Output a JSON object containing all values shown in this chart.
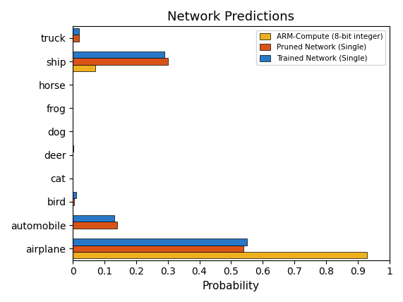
{
  "categories": [
    "airplane",
    "automobile",
    "bird",
    "cat",
    "deer",
    "dog",
    "frog",
    "horse",
    "ship",
    "truck"
  ],
  "trained_network": [
    0.55,
    0.13,
    0.01,
    0.0,
    0.002,
    0.0,
    0.0,
    0.0,
    0.29,
    0.02
  ],
  "pruned_network": [
    0.54,
    0.14,
    0.005,
    0.0,
    0.0,
    0.0,
    0.0,
    0.0,
    0.3,
    0.02
  ],
  "arm_compute": [
    0.93,
    0.0,
    0.0,
    0.0,
    0.0,
    0.0,
    0.0,
    0.0,
    0.07,
    0.0
  ],
  "colors": {
    "trained": "#2878c8",
    "pruned": "#d95319",
    "arm": "#edb120"
  },
  "title": "Network Predictions",
  "xlabel": "Probability",
  "xlim": [
    0,
    1
  ],
  "xticks": [
    0,
    0.1,
    0.2,
    0.3,
    0.4,
    0.5,
    0.6,
    0.7,
    0.8,
    0.9,
    1
  ],
  "xtick_labels": [
    "0",
    "0.1",
    "0.2",
    "0.3",
    "0.4",
    "0.5",
    "0.6",
    "0.7",
    "0.8",
    "0.9",
    "1"
  ],
  "legend_labels": [
    "Trained Network (Single)",
    "Pruned Network (Single)",
    "ARM-Compute (8-bit integer)"
  ],
  "bar_height": 0.28
}
